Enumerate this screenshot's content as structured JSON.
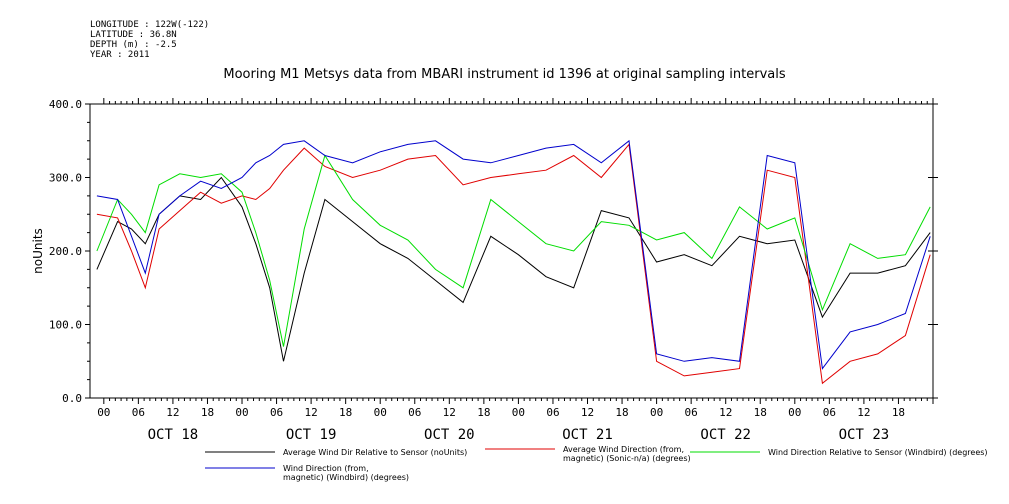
{
  "meta": {
    "longitude": "LONGITUDE : 122W(-122)",
    "latitude": "LATITUDE : 36.8N",
    "depth": "DEPTH (m) : -2.5",
    "year": "YEAR : 2011"
  },
  "chart_data": {
    "type": "line",
    "title": "Mooring M1 Metsys data from MBARI instrument id 1396 at original sampling intervals",
    "ylabel": "noUnits",
    "ylim": [
      0,
      400
    ],
    "yticks": [
      0,
      100,
      200,
      300,
      400
    ],
    "xlim": [
      -0.1,
      6.0
    ],
    "x_unit": "days since OCT 18 00:00 (2011)",
    "hour_ticks": [
      "00",
      "06",
      "12",
      "18",
      "00",
      "06",
      "12",
      "18",
      "00",
      "06",
      "12",
      "18",
      "00",
      "06",
      "12",
      "18",
      "00",
      "06",
      "12",
      "18",
      "00",
      "06",
      "12",
      "18"
    ],
    "day_labels": [
      "OCT 18",
      "OCT 19",
      "OCT 20",
      "OCT 21",
      "OCT 22",
      "OCT 23"
    ],
    "grid": false,
    "legend": [
      {
        "name": "Average Wind Dir Relative to Sensor (noUnits)",
        "color": "#000000"
      },
      {
        "name": "Average Wind Direction (from,\nmagnetic) (Sonic-n/a) (degrees)",
        "color": "#e00000"
      },
      {
        "name": "Wind Direction Relative to Sensor (Windbird) (degrees)",
        "color": "#00dd00"
      },
      {
        "name": "Wind Direction (from,\nmagnetic) (Windbird) (degrees)",
        "color": "#0000cc"
      }
    ],
    "series": [
      {
        "name": "Average Wind Dir Relative to Sensor (noUnits)",
        "color": "#000000",
        "x": [
          -0.05,
          0.1,
          0.2,
          0.3,
          0.4,
          0.55,
          0.7,
          0.85,
          1.0,
          1.1,
          1.2,
          1.3,
          1.45,
          1.6,
          1.8,
          2.0,
          2.2,
          2.4,
          2.6,
          2.8,
          3.0,
          3.2,
          3.4,
          3.6,
          3.8,
          4.0,
          4.2,
          4.4,
          4.6,
          4.8,
          5.0,
          5.2,
          5.4,
          5.6,
          5.8,
          5.98
        ],
        "y": [
          175,
          240,
          230,
          210,
          250,
          275,
          270,
          300,
          260,
          210,
          150,
          50,
          170,
          270,
          240,
          210,
          190,
          160,
          130,
          220,
          195,
          165,
          150,
          255,
          245,
          185,
          195,
          180,
          220,
          210,
          215,
          110,
          170,
          170,
          180,
          225
        ]
      },
      {
        "name": "Average Wind Direction (from, magnetic) (Sonic-n/a) (degrees)",
        "color": "#e00000",
        "x": [
          -0.05,
          0.1,
          0.2,
          0.3,
          0.4,
          0.55,
          0.7,
          0.85,
          1.0,
          1.1,
          1.2,
          1.3,
          1.45,
          1.6,
          1.8,
          2.0,
          2.2,
          2.4,
          2.6,
          2.8,
          3.0,
          3.2,
          3.4,
          3.6,
          3.8,
          4.0,
          4.2,
          4.4,
          4.6,
          4.8,
          5.0,
          5.2,
          5.4,
          5.6,
          5.8,
          5.98
        ],
        "y": [
          250,
          245,
          200,
          150,
          230,
          255,
          280,
          265,
          275,
          270,
          285,
          310,
          340,
          315,
          300,
          310,
          325,
          330,
          290,
          300,
          305,
          310,
          330,
          300,
          345,
          50,
          30,
          35,
          40,
          310,
          300,
          20,
          50,
          60,
          85,
          195
        ]
      },
      {
        "name": "Wind Direction Relative to Sensor (Windbird) (degrees)",
        "color": "#00dd00",
        "x": [
          -0.05,
          0.1,
          0.2,
          0.3,
          0.4,
          0.55,
          0.7,
          0.85,
          1.0,
          1.1,
          1.2,
          1.3,
          1.45,
          1.6,
          1.8,
          2.0,
          2.2,
          2.4,
          2.6,
          2.8,
          3.0,
          3.2,
          3.4,
          3.6,
          3.8,
          4.0,
          4.2,
          4.4,
          4.6,
          4.8,
          5.0,
          5.2,
          5.4,
          5.6,
          5.8,
          5.98
        ],
        "y": [
          200,
          270,
          250,
          225,
          290,
          305,
          300,
          305,
          280,
          225,
          160,
          70,
          230,
          330,
          270,
          235,
          215,
          175,
          150,
          270,
          240,
          210,
          200,
          240,
          235,
          215,
          225,
          190,
          260,
          230,
          245,
          120,
          210,
          190,
          195,
          260
        ]
      },
      {
        "name": "Wind Direction (from, magnetic) (Windbird) (degrees)",
        "color": "#0000cc",
        "x": [
          -0.05,
          0.1,
          0.2,
          0.3,
          0.4,
          0.55,
          0.7,
          0.85,
          1.0,
          1.1,
          1.2,
          1.3,
          1.45,
          1.6,
          1.8,
          2.0,
          2.2,
          2.4,
          2.6,
          2.8,
          3.0,
          3.2,
          3.4,
          3.6,
          3.8,
          4.0,
          4.2,
          4.4,
          4.6,
          4.8,
          5.0,
          5.2,
          5.4,
          5.6,
          5.8,
          5.98
        ],
        "y": [
          275,
          270,
          220,
          170,
          250,
          275,
          295,
          285,
          300,
          320,
          330,
          345,
          350,
          330,
          320,
          335,
          345,
          350,
          325,
          320,
          330,
          340,
          345,
          320,
          350,
          60,
          50,
          55,
          50,
          330,
          320,
          40,
          90,
          100,
          115,
          220
        ]
      }
    ]
  }
}
